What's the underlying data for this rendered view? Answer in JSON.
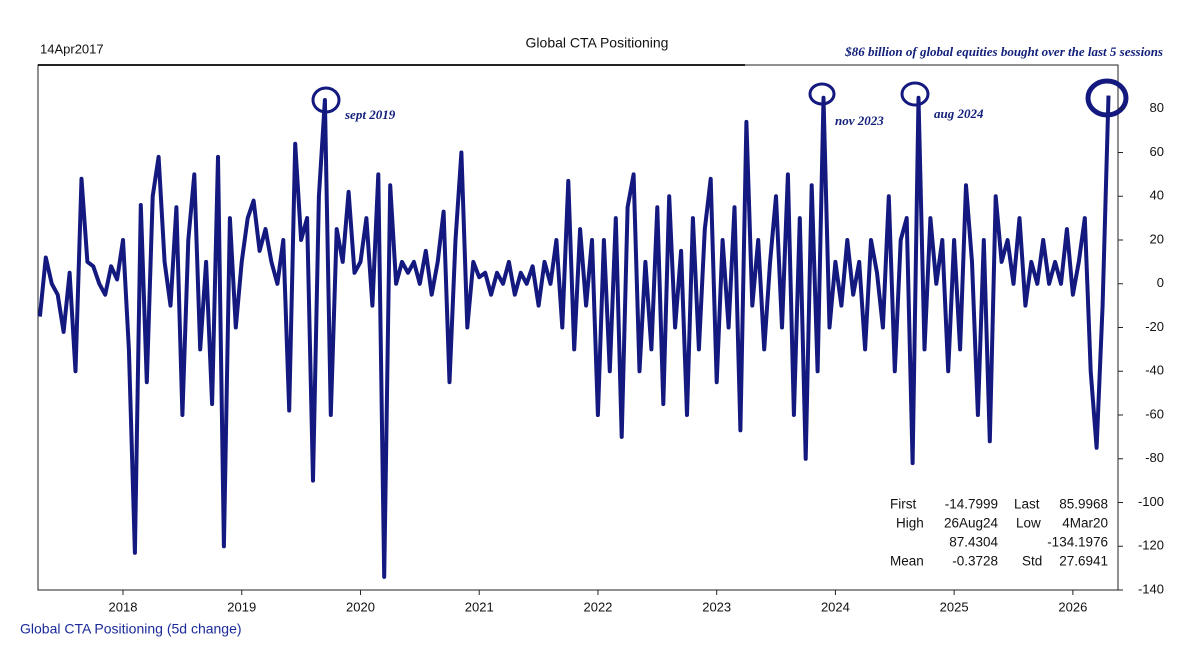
{
  "chart_data": {
    "type": "line",
    "title": "Global CTA Positioning",
    "start_label": "14Apr2017",
    "note": "$86 billion of global equities bought over the last 5 sessions",
    "series_label": "Global CTA Positioning (5d change)",
    "annotations": [
      "sept 2019",
      "nov 2023",
      "aug 2024"
    ],
    "color": "#14197f",
    "xlim": [
      2017.284,
      2026.38
    ],
    "xticks": [
      2018,
      2019,
      2020,
      2021,
      2022,
      2023,
      2024,
      2025,
      2026
    ],
    "ylim": [
      -140,
      100
    ],
    "yticks": [
      -140,
      -120,
      -100,
      -80,
      -60,
      -40,
      -20,
      0,
      20,
      40,
      60,
      80
    ],
    "grid": false,
    "stats": [
      [
        "First",
        "-14.7999",
        "Last",
        "85.9968"
      ],
      [
        "High",
        "26Aug24",
        "Low",
        "4Mar20"
      ],
      [
        "87.4304",
        "-134.1976"
      ],
      [
        "Mean",
        "-0.3728",
        "Std",
        "27.6941"
      ]
    ],
    "x": [
      2017.3,
      2017.35,
      2017.4,
      2017.45,
      2017.5,
      2017.55,
      2017.6,
      2017.65,
      2017.7,
      2017.75,
      2017.8,
      2017.85,
      2017.9,
      2017.95,
      2018.0,
      2018.05,
      2018.1,
      2018.15,
      2018.2,
      2018.25,
      2018.3,
      2018.35,
      2018.4,
      2018.45,
      2018.5,
      2018.55,
      2018.6,
      2018.65,
      2018.7,
      2018.75,
      2018.8,
      2018.85,
      2018.9,
      2018.95,
      2019.0,
      2019.05,
      2019.1,
      2019.15,
      2019.2,
      2019.25,
      2019.3,
      2019.35,
      2019.4,
      2019.45,
      2019.5,
      2019.55,
      2019.6,
      2019.65,
      2019.7,
      2019.75,
      2019.8,
      2019.85,
      2019.9,
      2019.95,
      2020.0,
      2020.05,
      2020.1,
      2020.15,
      2020.2,
      2020.25,
      2020.3,
      2020.35,
      2020.4,
      2020.45,
      2020.5,
      2020.55,
      2020.6,
      2020.65,
      2020.7,
      2020.75,
      2020.8,
      2020.85,
      2020.9,
      2020.95,
      2021.0,
      2021.05,
      2021.1,
      2021.15,
      2021.2,
      2021.25,
      2021.3,
      2021.35,
      2021.4,
      2021.45,
      2021.5,
      2021.55,
      2021.6,
      2021.65,
      2021.7,
      2021.75,
      2021.8,
      2021.85,
      2021.9,
      2021.95,
      2022.0,
      2022.05,
      2022.1,
      2022.15,
      2022.2,
      2022.25,
      2022.3,
      2022.35,
      2022.4,
      2022.45,
      2022.5,
      2022.55,
      2022.6,
      2022.65,
      2022.7,
      2022.75,
      2022.8,
      2022.85,
      2022.9,
      2022.95,
      2023.0,
      2023.05,
      2023.1,
      2023.15,
      2023.2,
      2023.25,
      2023.3,
      2023.35,
      2023.4,
      2023.45,
      2023.5,
      2023.55,
      2023.6,
      2023.65,
      2023.7,
      2023.75,
      2023.8,
      2023.85,
      2023.9,
      2023.95,
      2024.0,
      2024.05,
      2024.1,
      2024.15,
      2024.2,
      2024.25,
      2024.3,
      2024.35,
      2024.4,
      2024.45,
      2024.5,
      2024.55,
      2024.6,
      2024.65,
      2024.7,
      2024.75,
      2024.8,
      2024.85,
      2024.9,
      2024.95,
      2025.0,
      2025.05,
      2025.1,
      2025.15,
      2025.2,
      2025.25,
      2025.3,
      2025.35,
      2025.4,
      2025.45,
      2025.5,
      2025.55,
      2025.6,
      2025.65,
      2025.7,
      2025.75,
      2025.8,
      2025.85,
      2025.9,
      2025.95,
      2026.0,
      2026.05,
      2026.1,
      2026.15,
      2026.2,
      2026.25,
      2026.3
    ],
    "values": [
      -15,
      12,
      0,
      -5,
      -22,
      5,
      -40,
      48,
      10,
      8,
      0,
      -5,
      8,
      2,
      20,
      -30,
      -123,
      36,
      -45,
      40,
      58,
      10,
      -10,
      35,
      -60,
      20,
      50,
      -30,
      10,
      -55,
      58,
      -120,
      30,
      -20,
      10,
      30,
      38,
      15,
      25,
      10,
      0,
      20,
      -58,
      64,
      20,
      30,
      -90,
      40,
      84,
      -60,
      25,
      10,
      42,
      5,
      10,
      30,
      -10,
      50,
      -134,
      45,
      0,
      10,
      5,
      10,
      0,
      15,
      -5,
      10,
      33,
      -45,
      20,
      60,
      -20,
      10,
      3,
      5,
      -5,
      5,
      0,
      10,
      -5,
      5,
      0,
      8,
      -10,
      10,
      0,
      20,
      -20,
      47,
      -30,
      25,
      -10,
      20,
      -60,
      20,
      -40,
      30,
      -70,
      35,
      50,
      -40,
      10,
      -30,
      35,
      -55,
      40,
      -20,
      15,
      -60,
      30,
      -30,
      25,
      48,
      -45,
      20,
      -20,
      35,
      -67,
      74,
      -10,
      20,
      -30,
      10,
      40,
      -20,
      50,
      -60,
      30,
      -80,
      45,
      -40,
      85,
      -20,
      10,
      -10,
      20,
      -5,
      10,
      -30,
      20,
      5,
      -20,
      40,
      -40,
      20,
      30,
      -82,
      85,
      -30,
      30,
      0,
      20,
      -40,
      20,
      -30,
      45,
      10,
      -60,
      20,
      -72,
      40,
      10,
      20,
      0,
      30,
      -10,
      10,
      0,
      20,
      0,
      10,
      0,
      25,
      -5,
      10,
      30,
      -40,
      -75,
      -10,
      86
    ]
  }
}
